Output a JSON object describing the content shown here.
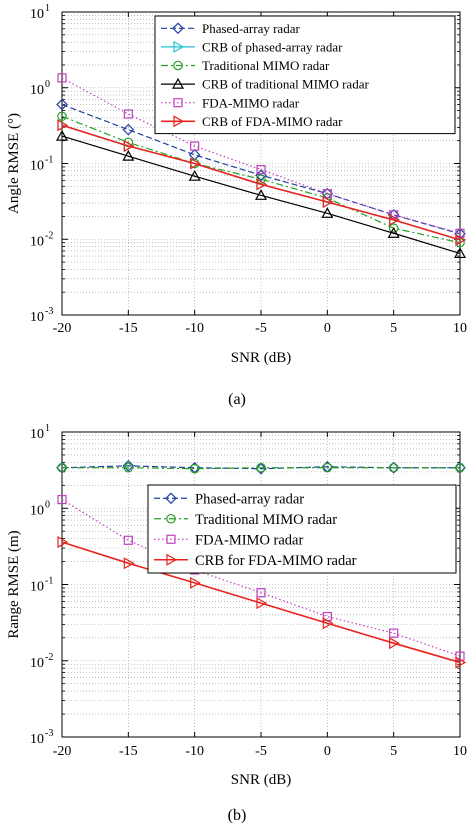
{
  "chart_data": [
    {
      "type": "line",
      "caption": "(a)",
      "xlabel": "SNR (dB)",
      "ylabel": "Angle RMSE (°)",
      "yscale": "log",
      "xlim": [
        -20,
        10
      ],
      "ylim": [
        0.001,
        10
      ],
      "grid": true,
      "legend_position": "top-right",
      "x": [
        -20,
        -15,
        -10,
        -5,
        0,
        5,
        10
      ],
      "xticks": [
        "-20",
        "-15",
        "-10",
        "-5",
        "0",
        "5",
        "10"
      ],
      "yticks": [
        {
          "base": "10",
          "exp": "1"
        },
        {
          "base": "10",
          "exp": "0"
        },
        {
          "base": "10",
          "exp": "-1"
        },
        {
          "base": "10",
          "exp": "-2"
        },
        {
          "base": "10",
          "exp": "-3"
        }
      ],
      "series": [
        {
          "name": "Phased-array radar",
          "color": "#1f3f9f",
          "dash": "dash",
          "marker": "diamond",
          "values": [
            0.6,
            0.28,
            0.13,
            0.07,
            0.04,
            0.021,
            0.0118
          ]
        },
        {
          "name": "CRB of phased-array radar",
          "color": "#22c4d4",
          "dash": "solid",
          "marker": "triangle-right",
          "values": [
            0.32,
            0.17,
            0.1,
            0.053,
            0.031,
            0.018,
            0.0098
          ]
        },
        {
          "name": "Traditional MIMO radar",
          "color": "#26a026",
          "dash": "dashdot",
          "marker": "circle",
          "values": [
            0.42,
            0.19,
            0.1,
            0.062,
            0.035,
            0.014,
            0.009
          ]
        },
        {
          "name": "CRB of traditional MIMO radar",
          "color": "#000000",
          "dash": "solid",
          "marker": "triangle-up",
          "values": [
            0.23,
            0.125,
            0.068,
            0.038,
            0.022,
            0.012,
            0.0065
          ]
        },
        {
          "name": "FDA-MIMO radar",
          "color": "#c040c0",
          "dash": "dot",
          "marker": "square",
          "values": [
            1.35,
            0.45,
            0.17,
            0.083,
            0.04,
            0.021,
            0.012
          ]
        },
        {
          "name": "CRB of FDA-MIMO radar",
          "color": "#e8231e",
          "dash": "solid",
          "marker": "triangle-right",
          "values": [
            0.32,
            0.17,
            0.1,
            0.053,
            0.031,
            0.018,
            0.0098
          ]
        }
      ]
    },
    {
      "type": "line",
      "caption": "(b)",
      "xlabel": "SNR (dB)",
      "ylabel": "Range RMSE (m)",
      "yscale": "log",
      "xlim": [
        -20,
        10
      ],
      "ylim": [
        0.001,
        10
      ],
      "grid": true,
      "legend_position": "upper-right",
      "x": [
        -20,
        -15,
        -10,
        -5,
        0,
        5,
        10
      ],
      "xticks": [
        "-20",
        "-15",
        "-10",
        "-5",
        "0",
        "5",
        "10"
      ],
      "yticks": [
        {
          "base": "10",
          "exp": "1"
        },
        {
          "base": "10",
          "exp": "0"
        },
        {
          "base": "10",
          "exp": "-1"
        },
        {
          "base": "10",
          "exp": "-2"
        },
        {
          "base": "10",
          "exp": "-3"
        }
      ],
      "series": [
        {
          "name": "Phased-array radar",
          "color": "#1f3f9f",
          "dash": "dash",
          "marker": "diamond",
          "values": [
            3.4,
            3.6,
            3.4,
            3.3,
            3.5,
            3.4,
            3.4
          ]
        },
        {
          "name": "Traditional MIMO radar",
          "color": "#26a026",
          "dash": "dashdot",
          "marker": "circle",
          "values": [
            3.4,
            3.4,
            3.3,
            3.4,
            3.4,
            3.4,
            3.4
          ]
        },
        {
          "name": "FDA-MIMO radar",
          "color": "#c040c0",
          "dash": "dot",
          "marker": "square",
          "values": [
            1.3,
            0.38,
            0.155,
            0.078,
            0.038,
            0.023,
            0.0115
          ]
        },
        {
          "name": "CRB for FDA-MIMO radar",
          "color": "#e8231e",
          "dash": "solid",
          "marker": "triangle-right",
          "values": [
            0.36,
            0.19,
            0.105,
            0.057,
            0.031,
            0.017,
            0.0095
          ]
        }
      ]
    }
  ]
}
